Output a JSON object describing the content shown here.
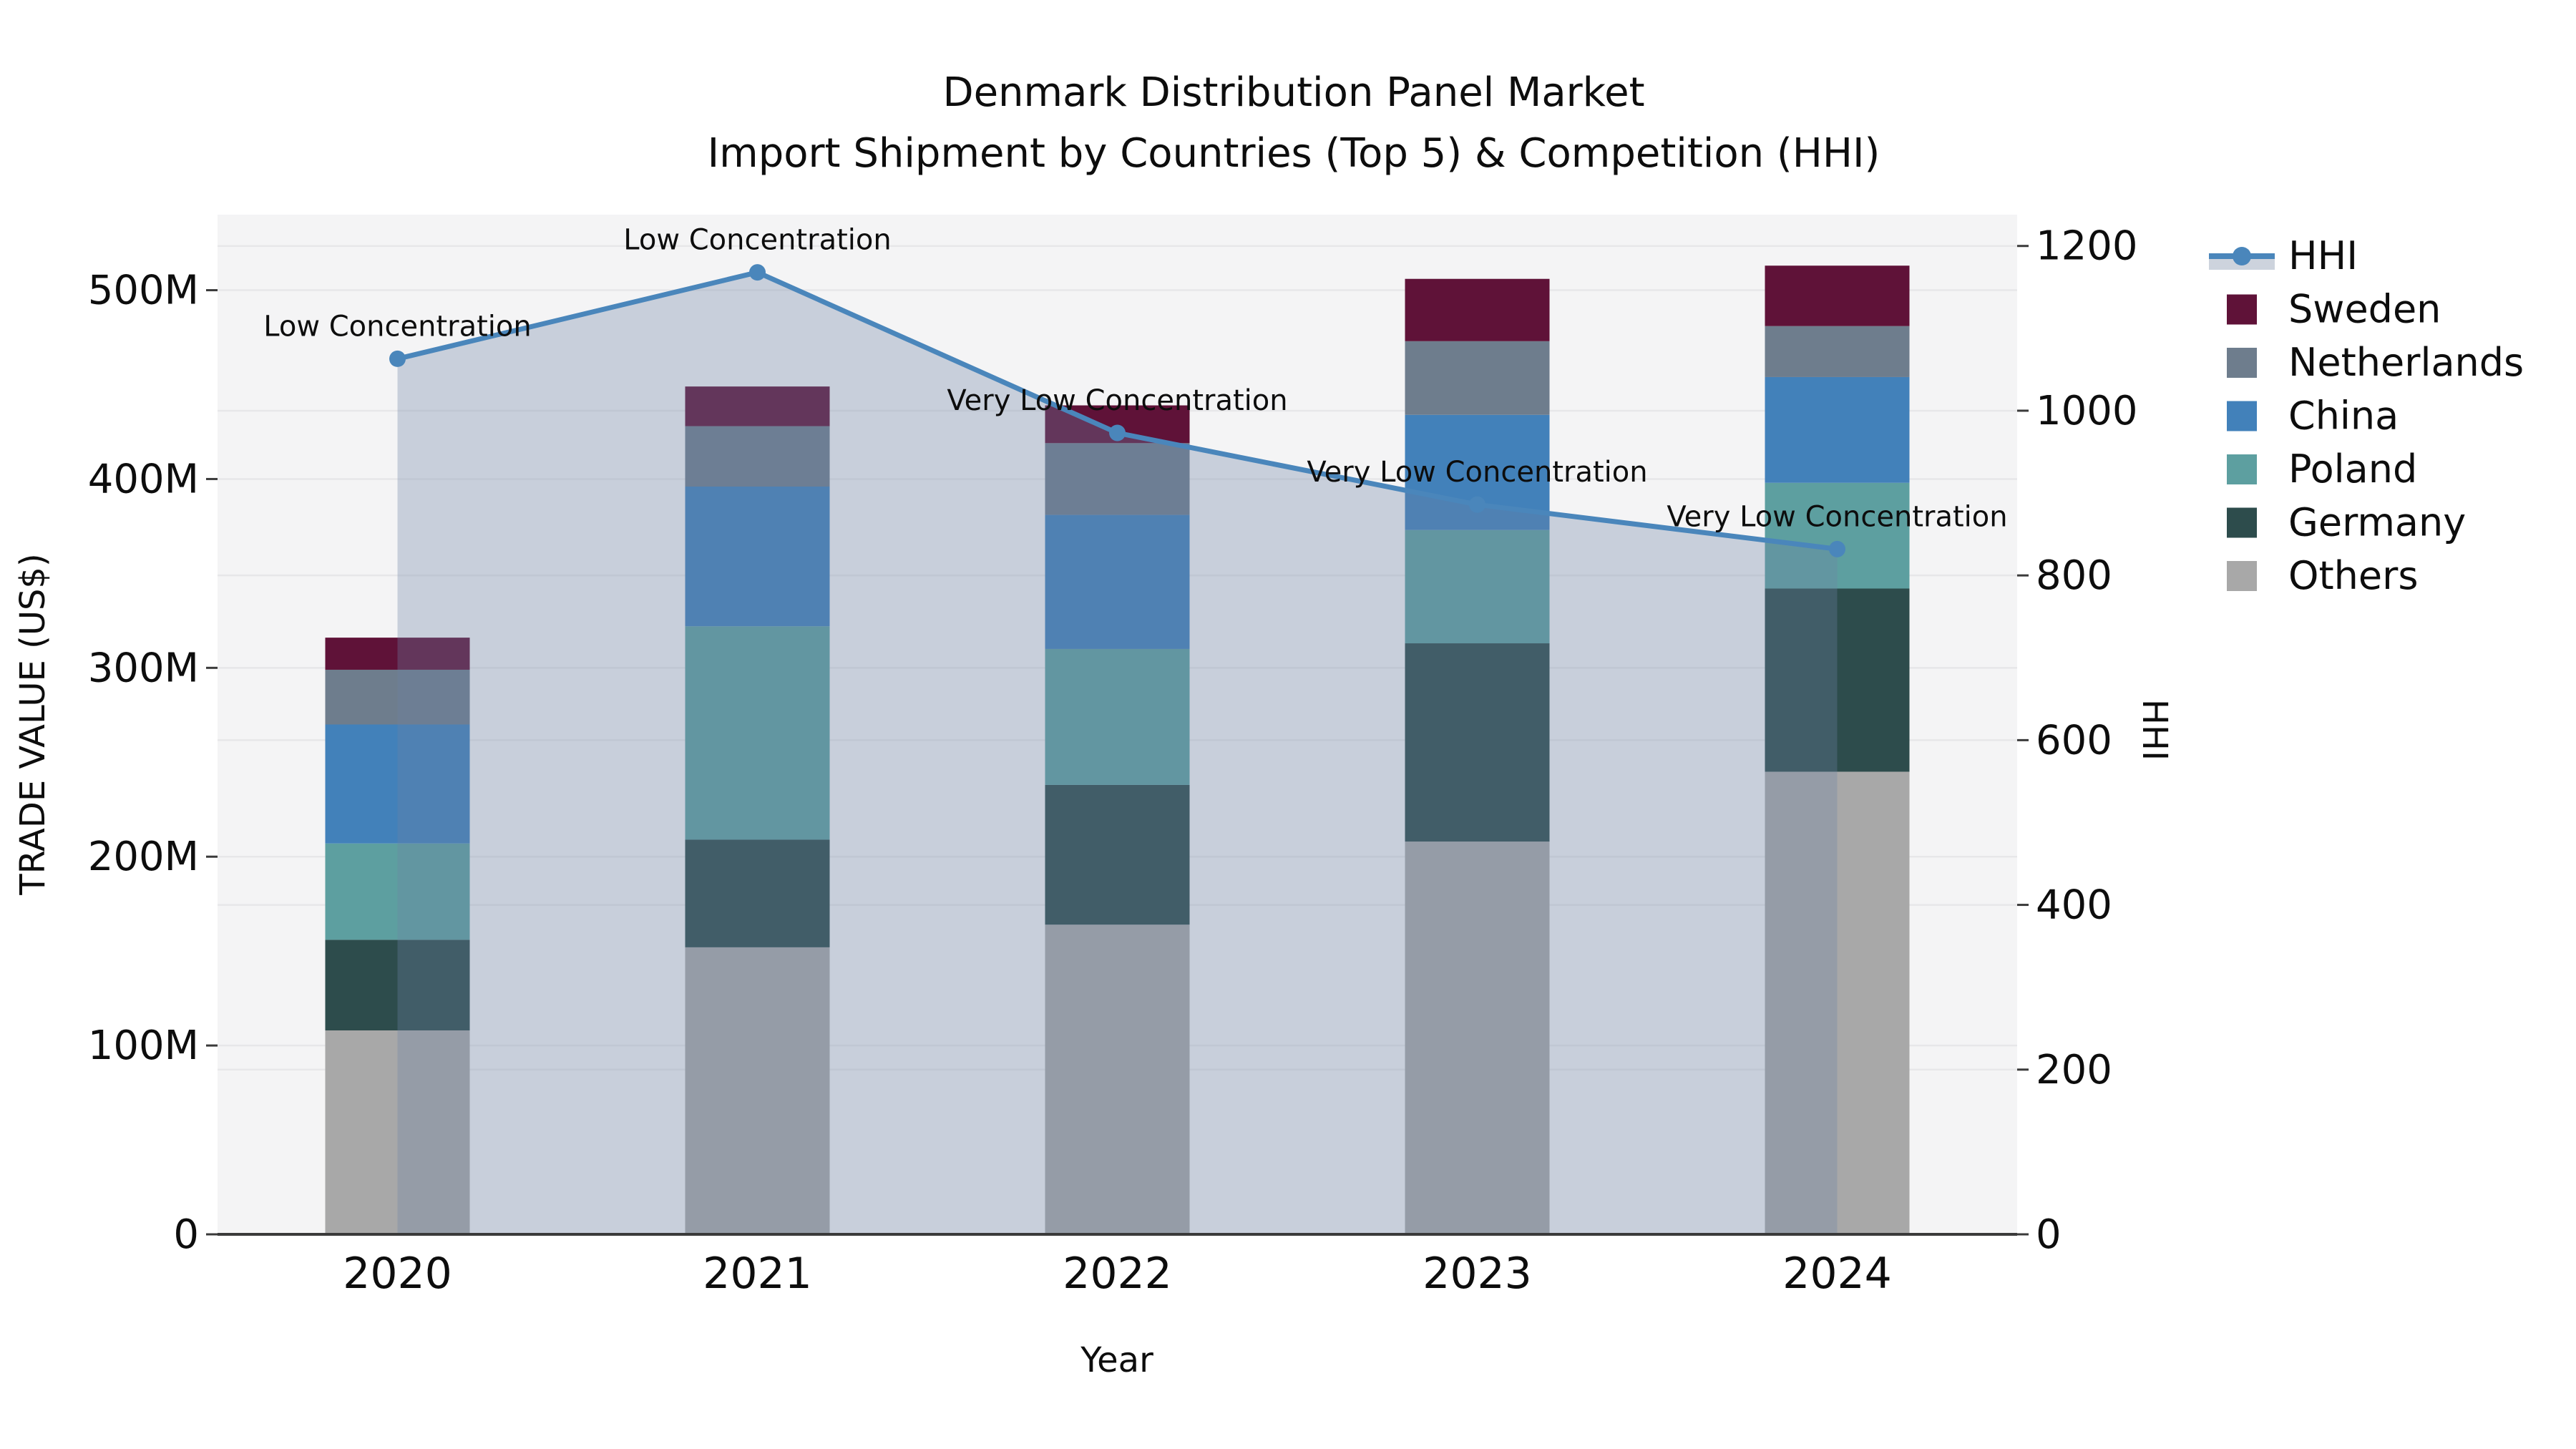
{
  "title": {
    "line1": "Denmark Distribution Panel Market",
    "line2": "Import Shipment by Countries (Top 5) & Competition (HHI)"
  },
  "axes": {
    "x": {
      "label": "Year",
      "categories": [
        "2020",
        "2021",
        "2022",
        "2023",
        "2024"
      ]
    },
    "left": {
      "label": "TRADE VALUE (US$)",
      "tick_labels": [
        "0",
        "100M",
        "200M",
        "300M",
        "400M",
        "500M"
      ],
      "tick_values": [
        0,
        100,
        200,
        300,
        400,
        500
      ]
    },
    "right": {
      "label": "HHI",
      "tick_labels": [
        "0",
        "200",
        "400",
        "600",
        "800",
        "1000",
        "1200"
      ],
      "tick_values": [
        0,
        200,
        400,
        600,
        800,
        1000,
        1200
      ]
    }
  },
  "legend": {
    "items": [
      {
        "label": "HHI",
        "type": "line",
        "color": "#4a86bb"
      },
      {
        "label": "Sweden",
        "type": "patch",
        "color": "#5f1238"
      },
      {
        "label": "Netherlands",
        "type": "patch",
        "color": "#6e7d8d"
      },
      {
        "label": "China",
        "type": "patch",
        "color": "#4281ba"
      },
      {
        "label": "Poland",
        "type": "patch",
        "color": "#5d9fa0"
      },
      {
        "label": "Germany",
        "type": "patch",
        "color": "#2d4c4c"
      },
      {
        "label": "Others",
        "type": "patch",
        "color": "#a8a8a8"
      }
    ]
  },
  "colors": {
    "plot_bg": "#f4f4f5",
    "grid": "#e7e7e9",
    "axis_line": "#3a3a3a",
    "hhi_line": "#4a86bb",
    "hhi_area": "rgba(108,130,165,0.32)",
    "legend_area_band": "#cdd3dd",
    "text": "#0d0d0d"
  },
  "chart_data": {
    "type": "bar",
    "subtype": "stacked-bars-with-line-overlay",
    "title": "Denmark Distribution Panel Market — Import Shipment by Countries (Top 5) & Competition (HHI)",
    "xlabel": "Year",
    "ylabel_left": "TRADE VALUE (US$), millions",
    "ylabel_right": "HHI",
    "categories": [
      "2020",
      "2021",
      "2022",
      "2023",
      "2024"
    ],
    "series": [
      {
        "name": "Others",
        "color": "#a8a8a8",
        "values": [
          108,
          152,
          164,
          208,
          245
        ]
      },
      {
        "name": "Germany",
        "color": "#2d4c4c",
        "values": [
          48,
          57,
          74,
          105,
          97
        ]
      },
      {
        "name": "Poland",
        "color": "#5d9fa0",
        "values": [
          51,
          113,
          72,
          60,
          56
        ]
      },
      {
        "name": "China",
        "color": "#4281ba",
        "values": [
          63,
          74,
          71,
          61,
          56
        ]
      },
      {
        "name": "Netherlands",
        "color": "#6e7d8d",
        "values": [
          29,
          32,
          38,
          39,
          27
        ]
      },
      {
        "name": "Sweden",
        "color": "#5f1238",
        "values": [
          17,
          21,
          20,
          33,
          32
        ]
      }
    ],
    "bar_totals_musd": [
      316,
      449,
      439,
      506,
      513
    ],
    "line_series": {
      "name": "HHI",
      "axis": "right",
      "color": "#4a86bb",
      "values": [
        1063,
        1168,
        973,
        886,
        832
      ],
      "area_fill": true
    },
    "annotations": [
      "Low Concentration",
      "Low Concentration",
      "Very Low Concentration",
      "Very Low Concentration",
      "Very Low Concentration"
    ],
    "ylim_left": [
      0,
      540
    ],
    "ylim_right": [
      0,
      1238
    ],
    "grid": true,
    "legend_position": "right-outside"
  }
}
